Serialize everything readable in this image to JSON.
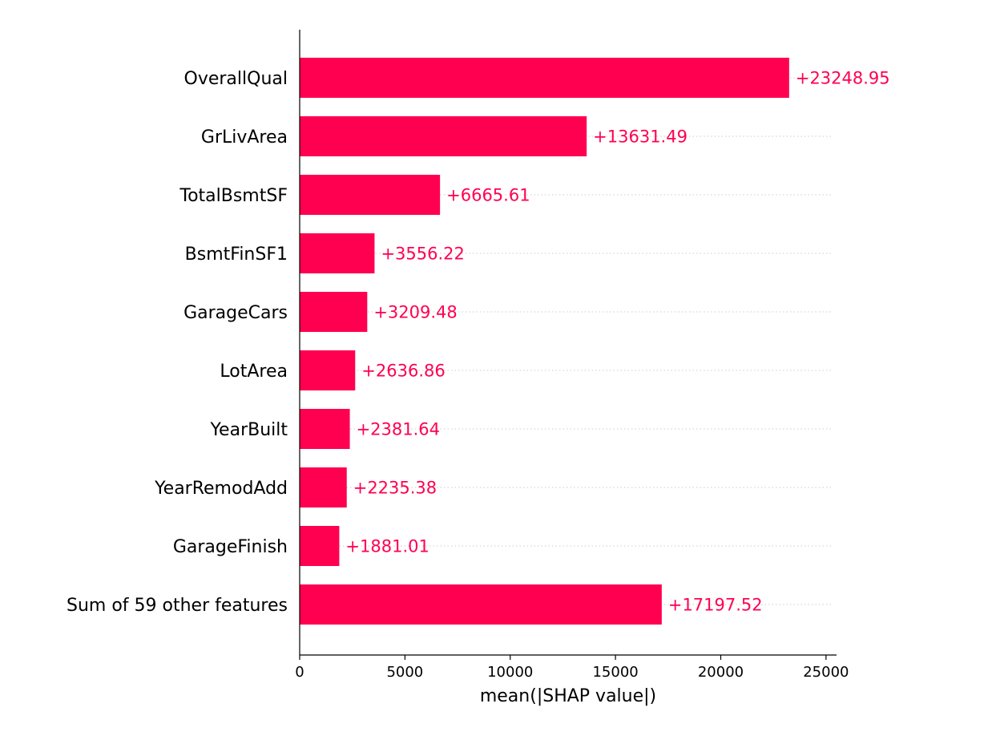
{
  "chart_data": {
    "type": "bar",
    "orientation": "horizontal",
    "title": "",
    "xlabel": "mean(|SHAP value|)",
    "ylabel": "",
    "xlim": [
      0,
      25500
    ],
    "xticks": [
      0,
      5000,
      10000,
      15000,
      20000,
      25000
    ],
    "xtick_labels": [
      "0",
      "5000",
      "10000",
      "15000",
      "20000",
      "25000"
    ],
    "grid": false,
    "categories": [
      "OverallQual",
      "GrLivArea",
      "TotalBsmtSF",
      "BsmtFinSF1",
      "GarageCars",
      "LotArea",
      "YearBuilt",
      "YearRemodAdd",
      "GarageFinish",
      "Sum of 59 other features"
    ],
    "values": [
      23248.95,
      13631.49,
      6665.61,
      3556.22,
      3209.48,
      2636.86,
      2381.64,
      2235.38,
      1881.01,
      17197.52
    ],
    "value_labels": [
      "+23248.95",
      "+13631.49",
      "+6665.61",
      "+3556.22",
      "+3209.48",
      "+2636.86",
      "+2381.64",
      "+2235.38",
      "+1881.01",
      "+17197.52"
    ],
    "bar_color": "#ff0051",
    "label_color": "#ff0051",
    "guide_color": "#cccccc"
  }
}
